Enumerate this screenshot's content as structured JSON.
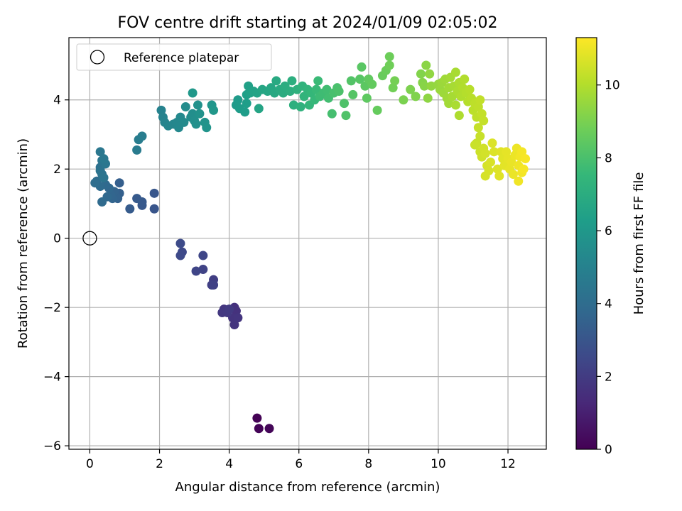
{
  "chart_data": {
    "type": "scatter",
    "title": "FOV centre drift starting at 2024/01/09 02:05:02",
    "xlabel": "Angular distance from reference (arcmin)",
    "ylabel": "Rotation from reference (arcmin)",
    "xlim": [
      -0.6,
      13.1
    ],
    "ylim": [
      -6.1,
      5.8
    ],
    "x_ticks": [
      0,
      2,
      4,
      6,
      8,
      10,
      12
    ],
    "y_ticks": [
      -6,
      -4,
      -2,
      0,
      2,
      4
    ],
    "x_tick_labels": [
      "0",
      "2",
      "4",
      "6",
      "8",
      "10",
      "12"
    ],
    "y_tick_labels": [
      "−6",
      "−4",
      "−2",
      "0",
      "2",
      "4"
    ],
    "grid": true,
    "legend": {
      "placement": "top-left",
      "entries": [
        "Reference platepar"
      ]
    },
    "colorbar": {
      "label": "Hours from first FF file",
      "range": [
        0,
        11.3
      ],
      "ticks": [
        0,
        2,
        4,
        6,
        8,
        10
      ],
      "tick_labels": [
        "0",
        "2",
        "4",
        "6",
        "8",
        "10"
      ],
      "colormap": "viridis"
    },
    "colormap_stops": [
      "#440154",
      "#482878",
      "#3e4989",
      "#31688e",
      "#26828e",
      "#1f9e89",
      "#35b779",
      "#6ece58",
      "#b5de2b",
      "#fde725"
    ],
    "reference_point": {
      "x": 0,
      "y": 0
    },
    "points": [
      [
        4.8,
        -5.2,
        0.05
      ],
      [
        4.85,
        -5.5,
        0.1
      ],
      [
        5.15,
        -5.5,
        0.15
      ],
      [
        4.15,
        -2.0,
        1.6
      ],
      [
        4.2,
        -2.1,
        1.65
      ],
      [
        4.1,
        -2.3,
        1.7
      ],
      [
        4.15,
        -2.5,
        1.72
      ],
      [
        4.25,
        -2.3,
        1.75
      ],
      [
        3.85,
        -2.05,
        1.8
      ],
      [
        3.8,
        -2.15,
        1.85
      ],
      [
        3.95,
        -2.15,
        1.9
      ],
      [
        4.0,
        -2.05,
        1.95
      ],
      [
        3.55,
        -1.2,
        2.1
      ],
      [
        3.5,
        -1.35,
        2.15
      ],
      [
        3.55,
        -1.35,
        2.2
      ],
      [
        3.25,
        -0.9,
        2.3
      ],
      [
        3.05,
        -0.95,
        2.35
      ],
      [
        3.25,
        -0.5,
        2.4
      ],
      [
        2.65,
        -0.4,
        2.5
      ],
      [
        2.6,
        -0.5,
        2.55
      ],
      [
        2.6,
        -0.15,
        2.6
      ],
      [
        1.85,
        0.85,
        3.0
      ],
      [
        1.85,
        1.3,
        3.05
      ],
      [
        1.5,
        0.95,
        3.1
      ],
      [
        1.5,
        1.05,
        3.15
      ],
      [
        1.35,
        1.15,
        3.2
      ],
      [
        1.15,
        0.85,
        3.25
      ],
      [
        0.85,
        1.6,
        3.4
      ],
      [
        0.85,
        1.3,
        3.45
      ],
      [
        0.8,
        1.15,
        3.5
      ],
      [
        0.75,
        1.2,
        3.55
      ],
      [
        0.7,
        1.35,
        3.6
      ],
      [
        0.65,
        1.15,
        3.65
      ],
      [
        0.6,
        1.25,
        3.7
      ],
      [
        0.55,
        1.45,
        3.75
      ],
      [
        0.5,
        1.2,
        3.8
      ],
      [
        0.45,
        1.55,
        3.85
      ],
      [
        0.35,
        1.05,
        3.9
      ],
      [
        0.3,
        1.5,
        3.95
      ],
      [
        0.2,
        1.65,
        4.0
      ],
      [
        0.15,
        1.6,
        4.05
      ],
      [
        0.3,
        2.05,
        4.2
      ],
      [
        0.35,
        1.85,
        4.25
      ],
      [
        0.3,
        1.95,
        4.3
      ],
      [
        0.4,
        1.75,
        4.35
      ],
      [
        0.35,
        2.25,
        4.4
      ],
      [
        0.45,
        2.15,
        4.45
      ],
      [
        0.3,
        2.5,
        4.5
      ],
      [
        0.4,
        2.3,
        4.55
      ],
      [
        1.35,
        2.55,
        4.7
      ],
      [
        1.4,
        2.85,
        4.75
      ],
      [
        1.5,
        2.95,
        4.8
      ],
      [
        2.05,
        3.7,
        5.0
      ],
      [
        2.1,
        3.5,
        5.05
      ],
      [
        2.15,
        3.35,
        5.1
      ],
      [
        2.25,
        3.25,
        5.15
      ],
      [
        2.4,
        3.3,
        5.2
      ],
      [
        2.5,
        3.35,
        5.25
      ],
      [
        2.55,
        3.2,
        5.3
      ],
      [
        2.6,
        3.5,
        5.35
      ],
      [
        2.7,
        3.35,
        5.4
      ],
      [
        2.75,
        3.8,
        5.45
      ],
      [
        2.9,
        3.5,
        5.5
      ],
      [
        2.95,
        3.6,
        5.55
      ],
      [
        3.0,
        3.4,
        5.6
      ],
      [
        3.05,
        3.3,
        5.65
      ],
      [
        3.1,
        3.85,
        5.7
      ],
      [
        3.15,
        3.6,
        5.75
      ],
      [
        3.3,
        3.35,
        5.8
      ],
      [
        3.35,
        3.2,
        5.85
      ],
      [
        3.5,
        3.85,
        5.9
      ],
      [
        3.55,
        3.7,
        5.95
      ],
      [
        2.95,
        4.2,
        6.0
      ],
      [
        4.2,
        3.85,
        6.1
      ],
      [
        4.25,
        4.0,
        6.15
      ],
      [
        4.3,
        3.75,
        6.2
      ],
      [
        4.45,
        3.65,
        6.25
      ],
      [
        4.5,
        3.9,
        6.3
      ],
      [
        4.5,
        4.15,
        6.35
      ],
      [
        4.55,
        4.4,
        6.4
      ],
      [
        4.6,
        4.2,
        6.45
      ],
      [
        4.7,
        4.25,
        6.5
      ],
      [
        4.8,
        4.2,
        6.55
      ],
      [
        4.85,
        3.75,
        6.6
      ],
      [
        4.95,
        4.3,
        6.65
      ],
      [
        5.1,
        4.25,
        6.7
      ],
      [
        5.2,
        4.35,
        6.75
      ],
      [
        5.3,
        4.2,
        6.8
      ],
      [
        5.35,
        4.55,
        6.85
      ],
      [
        5.45,
        4.3,
        6.9
      ],
      [
        5.55,
        4.2,
        6.95
      ],
      [
        5.6,
        4.4,
        7.0
      ],
      [
        5.75,
        4.25,
        7.05
      ],
      [
        5.8,
        4.55,
        7.1
      ],
      [
        5.85,
        3.85,
        7.15
      ],
      [
        5.95,
        4.3,
        7.2
      ],
      [
        6.05,
        3.8,
        7.25
      ],
      [
        6.1,
        4.4,
        7.3
      ],
      [
        6.15,
        4.1,
        7.35
      ],
      [
        6.25,
        4.3,
        7.4
      ],
      [
        6.3,
        3.85,
        7.45
      ],
      [
        6.35,
        4.2,
        7.5
      ],
      [
        6.45,
        4.0,
        7.55
      ],
      [
        6.5,
        4.3,
        7.6
      ],
      [
        6.55,
        4.55,
        7.65
      ],
      [
        6.6,
        4.1,
        7.7
      ],
      [
        6.7,
        4.2,
        7.75
      ],
      [
        6.8,
        4.3,
        7.8
      ],
      [
        6.85,
        4.05,
        7.85
      ],
      [
        6.95,
        3.6,
        7.9
      ],
      [
        7.0,
        4.2,
        7.95
      ],
      [
        7.1,
        4.35,
        8.0
      ],
      [
        7.15,
        4.25,
        8.05
      ],
      [
        7.3,
        3.9,
        8.1
      ],
      [
        7.35,
        3.55,
        8.15
      ],
      [
        7.5,
        4.55,
        8.2
      ],
      [
        7.55,
        4.15,
        8.25
      ],
      [
        7.75,
        4.6,
        8.3
      ],
      [
        7.8,
        4.95,
        8.35
      ],
      [
        7.9,
        4.4,
        8.4
      ],
      [
        7.95,
        4.05,
        8.45
      ],
      [
        8.0,
        4.6,
        8.5
      ],
      [
        8.1,
        4.45,
        8.55
      ],
      [
        8.25,
        3.7,
        8.6
      ],
      [
        8.4,
        4.7,
        8.65
      ],
      [
        8.5,
        4.85,
        8.7
      ],
      [
        8.6,
        5.25,
        8.75
      ],
      [
        8.6,
        5.0,
        8.8
      ],
      [
        8.7,
        4.35,
        8.85
      ],
      [
        8.75,
        4.55,
        8.9
      ],
      [
        9.0,
        4.0,
        9.0
      ],
      [
        9.2,
        4.3,
        9.05
      ],
      [
        9.35,
        4.1,
        9.1
      ],
      [
        9.5,
        4.75,
        9.15
      ],
      [
        9.55,
        4.5,
        9.2
      ],
      [
        9.6,
        4.4,
        9.25
      ],
      [
        9.65,
        5.0,
        9.3
      ],
      [
        9.7,
        4.05,
        9.35
      ],
      [
        9.75,
        4.75,
        9.4
      ],
      [
        9.8,
        4.4,
        9.45
      ],
      [
        10.0,
        4.45,
        9.5
      ],
      [
        10.05,
        4.3,
        9.55
      ],
      [
        10.1,
        4.5,
        9.6
      ],
      [
        10.15,
        4.2,
        9.62
      ],
      [
        10.2,
        4.6,
        9.65
      ],
      [
        10.25,
        4.05,
        9.68
      ],
      [
        10.3,
        4.35,
        9.7
      ],
      [
        10.3,
        3.9,
        9.72
      ],
      [
        10.35,
        4.65,
        9.75
      ],
      [
        10.4,
        4.1,
        9.78
      ],
      [
        10.45,
        4.4,
        9.8
      ],
      [
        10.5,
        4.8,
        9.82
      ],
      [
        10.5,
        3.85,
        9.85
      ],
      [
        10.55,
        4.25,
        9.88
      ],
      [
        10.6,
        4.5,
        9.9
      ],
      [
        10.6,
        3.55,
        9.92
      ],
      [
        10.65,
        4.1,
        9.95
      ],
      [
        10.7,
        4.35,
        9.98
      ],
      [
        10.75,
        4.6,
        10.0
      ],
      [
        10.8,
        4.2,
        10.02
      ],
      [
        10.85,
        3.95,
        10.05
      ],
      [
        10.9,
        4.3,
        10.08
      ],
      [
        10.95,
        4.05,
        10.1
      ],
      [
        11.0,
        3.7,
        10.15
      ],
      [
        11.05,
        3.9,
        10.18
      ],
      [
        11.1,
        3.5,
        10.2
      ],
      [
        11.15,
        3.8,
        10.22
      ],
      [
        11.2,
        4.0,
        10.25
      ],
      [
        11.25,
        3.6,
        10.28
      ],
      [
        11.3,
        3.4,
        10.3
      ],
      [
        11.15,
        3.2,
        10.32
      ],
      [
        11.2,
        2.95,
        10.35
      ],
      [
        11.1,
        2.75,
        10.38
      ],
      [
        11.05,
        2.7,
        10.4
      ],
      [
        11.2,
        2.5,
        10.45
      ],
      [
        11.25,
        2.35,
        10.5
      ],
      [
        11.3,
        2.6,
        10.52
      ],
      [
        11.35,
        2.45,
        10.55
      ],
      [
        11.4,
        2.1,
        10.58
      ],
      [
        11.35,
        1.8,
        10.6
      ],
      [
        11.45,
        1.95,
        10.62
      ],
      [
        11.5,
        2.2,
        10.65
      ],
      [
        11.55,
        2.75,
        10.7
      ],
      [
        11.6,
        2.5,
        10.72
      ],
      [
        11.7,
        2.0,
        10.75
      ],
      [
        11.75,
        1.8,
        10.78
      ],
      [
        11.8,
        2.5,
        10.8
      ],
      [
        11.85,
        2.3,
        10.82
      ],
      [
        11.9,
        2.1,
        10.85
      ],
      [
        11.95,
        2.5,
        10.88
      ],
      [
        12.0,
        2.3,
        10.9
      ],
      [
        12.05,
        2.0,
        10.92
      ],
      [
        12.1,
        2.2,
        10.95
      ],
      [
        12.15,
        1.85,
        10.98
      ],
      [
        12.2,
        2.4,
        11.0
      ],
      [
        12.25,
        2.6,
        11.02
      ],
      [
        12.3,
        2.1,
        11.05
      ],
      [
        12.3,
        1.65,
        11.08
      ],
      [
        12.35,
        2.35,
        11.1
      ],
      [
        12.4,
        1.9,
        11.12
      ],
      [
        12.4,
        2.5,
        11.15
      ],
      [
        12.45,
        2.0,
        11.18
      ],
      [
        12.5,
        2.3,
        11.2
      ]
    ]
  }
}
